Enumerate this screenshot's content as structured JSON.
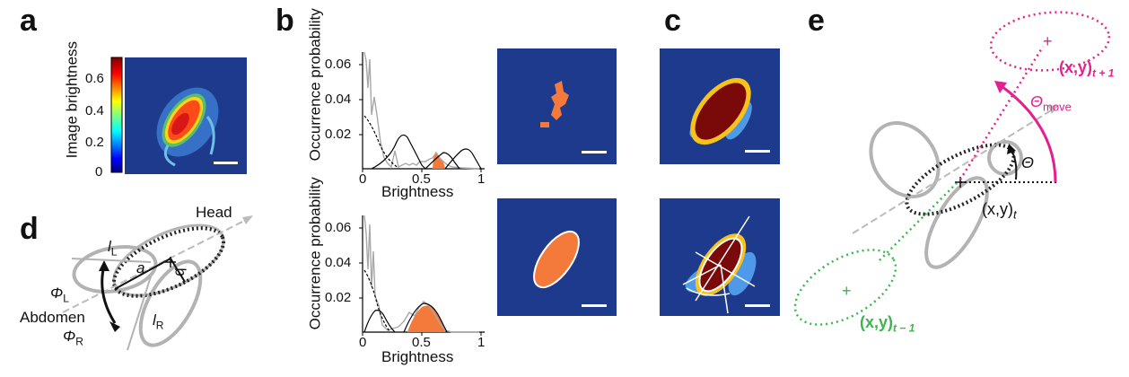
{
  "panels": {
    "a": {
      "letter": "a",
      "colorbar_label": "Image brightness",
      "colorbar_ticks": [
        "0.6",
        "0.4",
        "0.2",
        "0"
      ]
    },
    "b": {
      "letter": "b",
      "ylabel": "Occurrence probability",
      "xlabel": "Brightness",
      "yticks": [
        "0.06",
        "0.04",
        "0.02"
      ],
      "xticks": [
        "0",
        "0.5",
        "1"
      ]
    },
    "c": {
      "letter": "c"
    },
    "d": {
      "letter": "d",
      "labels": {
        "head": "Head",
        "abdomen": "Abdomen",
        "a": "a",
        "b": "b",
        "lL": "l",
        "lL_sub": "L",
        "lR": "l",
        "lR_sub": "R",
        "phiL": "Φ",
        "phiL_sub": "L",
        "phiR": "Φ",
        "phiR_sub": "R"
      }
    },
    "e": {
      "letter": "e",
      "labels": {
        "theta": "Θ",
        "theta_move": "Θ",
        "theta_move_sub": "move",
        "pos_t": "(x,y)",
        "pos_t_sub": "t",
        "pos_t1": "(x,y)",
        "pos_t1_sub": "t + 1",
        "pos_tm1": "(x,y)",
        "pos_tm1_sub": "t − 1"
      }
    },
    "colors": {
      "orange": "#f47a3c",
      "gray": "#b3b3b3",
      "magenta": "#e5208e",
      "green": "#3cb54a",
      "navy": "#1d3a8c",
      "dark_red": "#7a0a0a"
    }
  }
}
